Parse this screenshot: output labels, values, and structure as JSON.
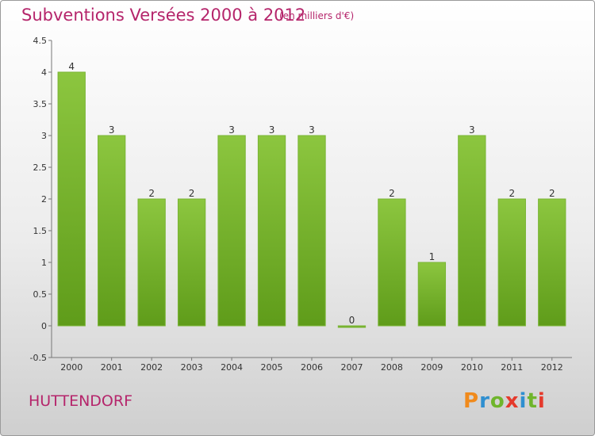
{
  "title": "Subventions Versées 2000 à 2012",
  "subtitle": "(en milliers d'€)",
  "place": "HUTTENDORF",
  "logo": {
    "letters": [
      "P",
      "r",
      "o",
      "x",
      "i",
      "t",
      "i"
    ],
    "colors": [
      "#f08a1c",
      "#2f8fd0",
      "#6fb52c",
      "#e53a2c",
      "#2f8fd0",
      "#6fb52c",
      "#e53a2c"
    ]
  },
  "chart_data": {
    "type": "bar",
    "title": "Subventions Versées 2000 à 2012",
    "subtitle": "(en milliers d'€)",
    "categories": [
      "2000",
      "2001",
      "2002",
      "2003",
      "2004",
      "2005",
      "2006",
      "2007",
      "2008",
      "2009",
      "2010",
      "2011",
      "2012"
    ],
    "values": [
      4,
      3,
      2,
      2,
      3,
      3,
      3,
      0,
      2,
      1,
      3,
      2,
      2
    ],
    "data_labels": [
      "4",
      "3",
      "2",
      "2",
      "3",
      "3",
      "3",
      "0",
      "2",
      "1",
      "3",
      "2",
      "2"
    ],
    "ylim": [
      -0.5,
      4.5
    ],
    "yticks": [
      -0.5,
      0,
      0.5,
      1,
      1.5,
      2,
      2.5,
      3,
      3.5,
      4,
      4.5
    ],
    "ytick_labels": [
      "-0.5",
      "0",
      "0.5",
      "1",
      "1.5",
      "2",
      "2.5",
      "3",
      "3.5",
      "4",
      "4.5"
    ],
    "grid": false,
    "bar_color": "#8cc63f",
    "bar_color_dark": "#5f9c1a"
  }
}
